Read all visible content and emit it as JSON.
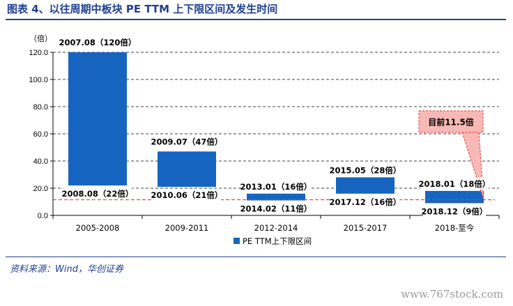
{
  "header": {
    "title": "图表 4、以往周期中板块 PE TTM 上下限区间及发生时间"
  },
  "source": {
    "text": "资料来源：Wind，华创证券"
  },
  "watermark": {
    "text": "www.767stock.com"
  },
  "chart_data": {
    "type": "bar",
    "y_unit_label": "（倍）",
    "ylim": [
      0,
      120
    ],
    "yticks": [
      "0.0",
      "20.0",
      "40.0",
      "60.0",
      "80.0",
      "100.0",
      "120.0"
    ],
    "grid": true,
    "legend_position": "bottom",
    "categories": [
      "2005-2008",
      "2009-2011",
      "2012-2014",
      "2015-2017",
      "2018-至今"
    ],
    "series": [
      {
        "name": "PE TTM上下限区间",
        "color": "#1565c0",
        "low": [
          22,
          21,
          11,
          16,
          9
        ],
        "high": [
          120,
          47,
          16,
          28,
          18
        ]
      }
    ],
    "high_labels": [
      "2007.08（120倍）",
      "2009.07（47倍）",
      "2013.01（16倍）",
      "2015.05（28倍）",
      "2018.01（18倍）"
    ],
    "low_labels": [
      "2008.08（22倍）",
      "2010.06（21倍）",
      "2014.02（11倍）",
      "2017.12（16倍）",
      "2018.12（9倍）"
    ],
    "current": {
      "value": 11.5,
      "label": "目前11.5倍",
      "color": "#e53935"
    }
  }
}
